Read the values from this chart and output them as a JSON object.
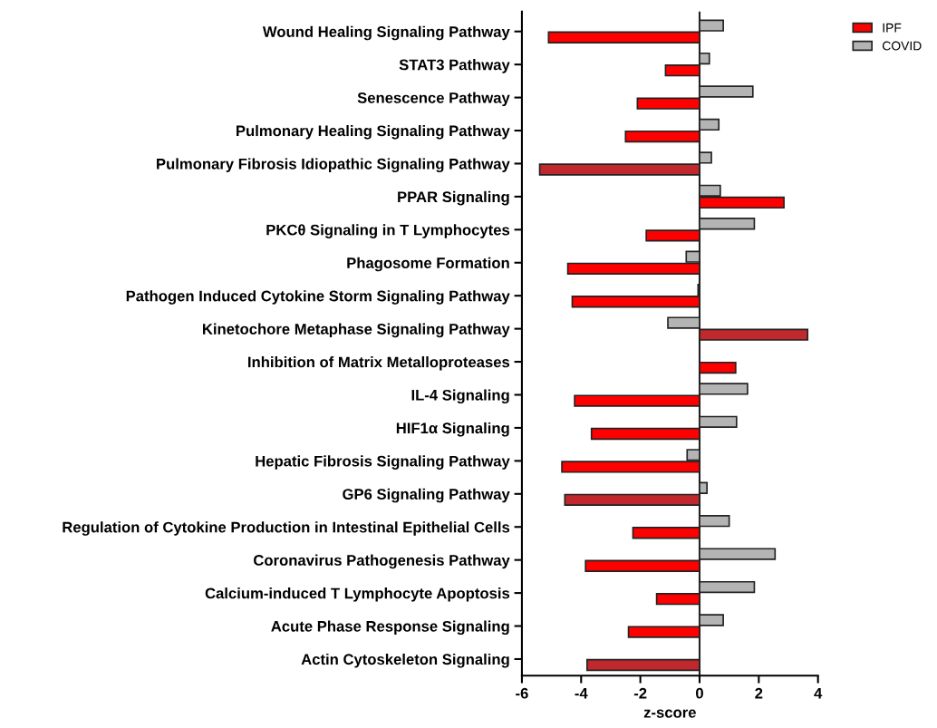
{
  "chart_data": {
    "type": "bar",
    "orientation": "horizontal",
    "xlabel": "z-score",
    "categories": [
      "Wound Healing Signaling Pathway",
      "STAT3 Pathway",
      "Senescence Pathway",
      "Pulmonary Healing Signaling Pathway",
      "Pulmonary Fibrosis Idiopathic Signaling Pathway",
      "PPAR Signaling",
      "PKCθ Signaling in T Lymphocytes",
      "Phagosome Formation",
      "Pathogen Induced Cytokine Storm Signaling Pathway",
      "Kinetochore Metaphase Signaling Pathway",
      "Inhibition of Matrix Metalloproteases",
      "IL-4 Signaling",
      "HIF1α Signaling",
      "Hepatic Fibrosis Signaling Pathway",
      "GP6 Signaling Pathway",
      "Regulation of Cytokine Production in Intestinal Epithelial Cells",
      "Coronavirus Pathogenesis Pathway",
      "Calcium-induced T Lymphocyte Apoptosis",
      "Acute Phase Response Signaling",
      "Actin Cytoskeleton Signaling"
    ],
    "series": [
      {
        "name": "COVID",
        "color": "#b4b4b4",
        "values": [
          0.8,
          0.33,
          1.8,
          0.65,
          0.4,
          0.7,
          1.85,
          -0.45,
          -0.05,
          -1.07,
          null,
          1.62,
          1.25,
          -0.42,
          0.25,
          1.0,
          2.55,
          1.85,
          0.8,
          null
        ]
      },
      {
        "name": "IPF",
        "color": "#ff0000",
        "colors": [
          "#ff0000",
          "#ff0000",
          "#ff0000",
          "#ff0000",
          "#c0282d",
          "#ff0000",
          "#ff0000",
          "#ff0000",
          "#ff0000",
          "#c0282d",
          "#ff0000",
          "#ff0000",
          "#ff0000",
          "#ff0000",
          "#c0282d",
          "#ff0000",
          "#ff0000",
          "#ff0000",
          "#ff0000",
          "#c0282d"
        ],
        "values": [
          -5.1,
          -1.15,
          -2.1,
          -2.5,
          -5.4,
          2.85,
          -1.8,
          -4.45,
          -4.3,
          3.65,
          1.22,
          -4.22,
          -3.65,
          -4.65,
          -4.55,
          -2.25,
          -3.85,
          -1.45,
          -2.4,
          -3.8
        ]
      }
    ],
    "xlim": [
      -6,
      4
    ],
    "xticks": [
      -6,
      -4,
      -2,
      0,
      2,
      4
    ],
    "grid": false,
    "legend": "top right",
    "ref_lines": [
      {
        "axis": "x",
        "value": 0,
        "color": "#222222"
      }
    ]
  }
}
